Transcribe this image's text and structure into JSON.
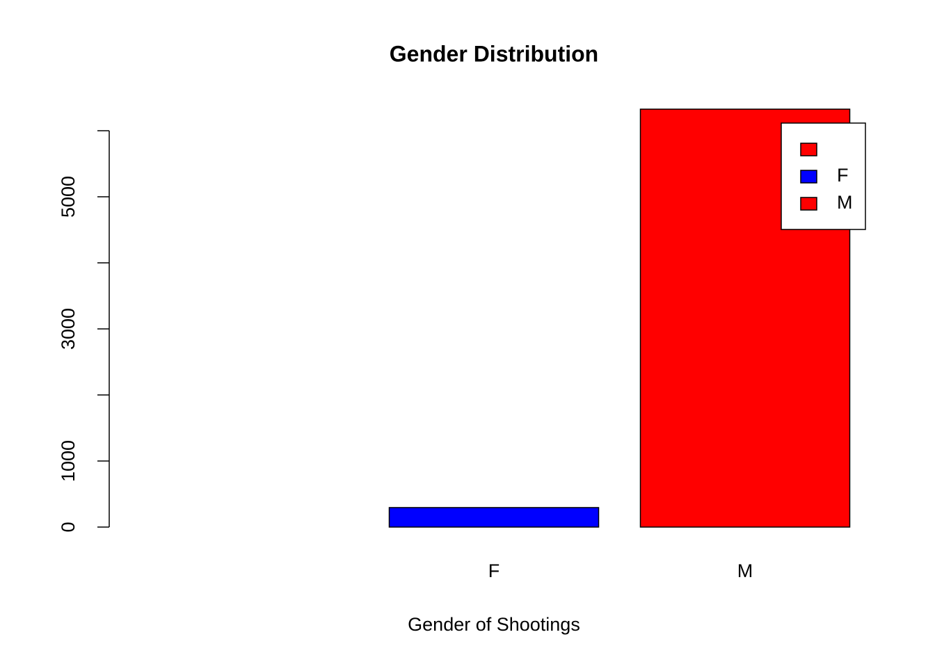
{
  "chart_data": {
    "type": "bar",
    "title": "Gender Distribution",
    "x_label": "Gender of Shootings",
    "categories": [
      null,
      "F",
      "M"
    ],
    "values": [
      0,
      295,
      6326
    ],
    "colors": [
      "#ff0000",
      "#0000ff",
      "#ff0000"
    ],
    "ylim": [
      0,
      6326
    ],
    "yticks": [
      0,
      1000,
      3000,
      5000
    ],
    "ytick_marks": [
      0,
      1000,
      2000,
      3000,
      4000,
      5000,
      6000
    ],
    "grid": false,
    "legend": "top-right"
  }
}
